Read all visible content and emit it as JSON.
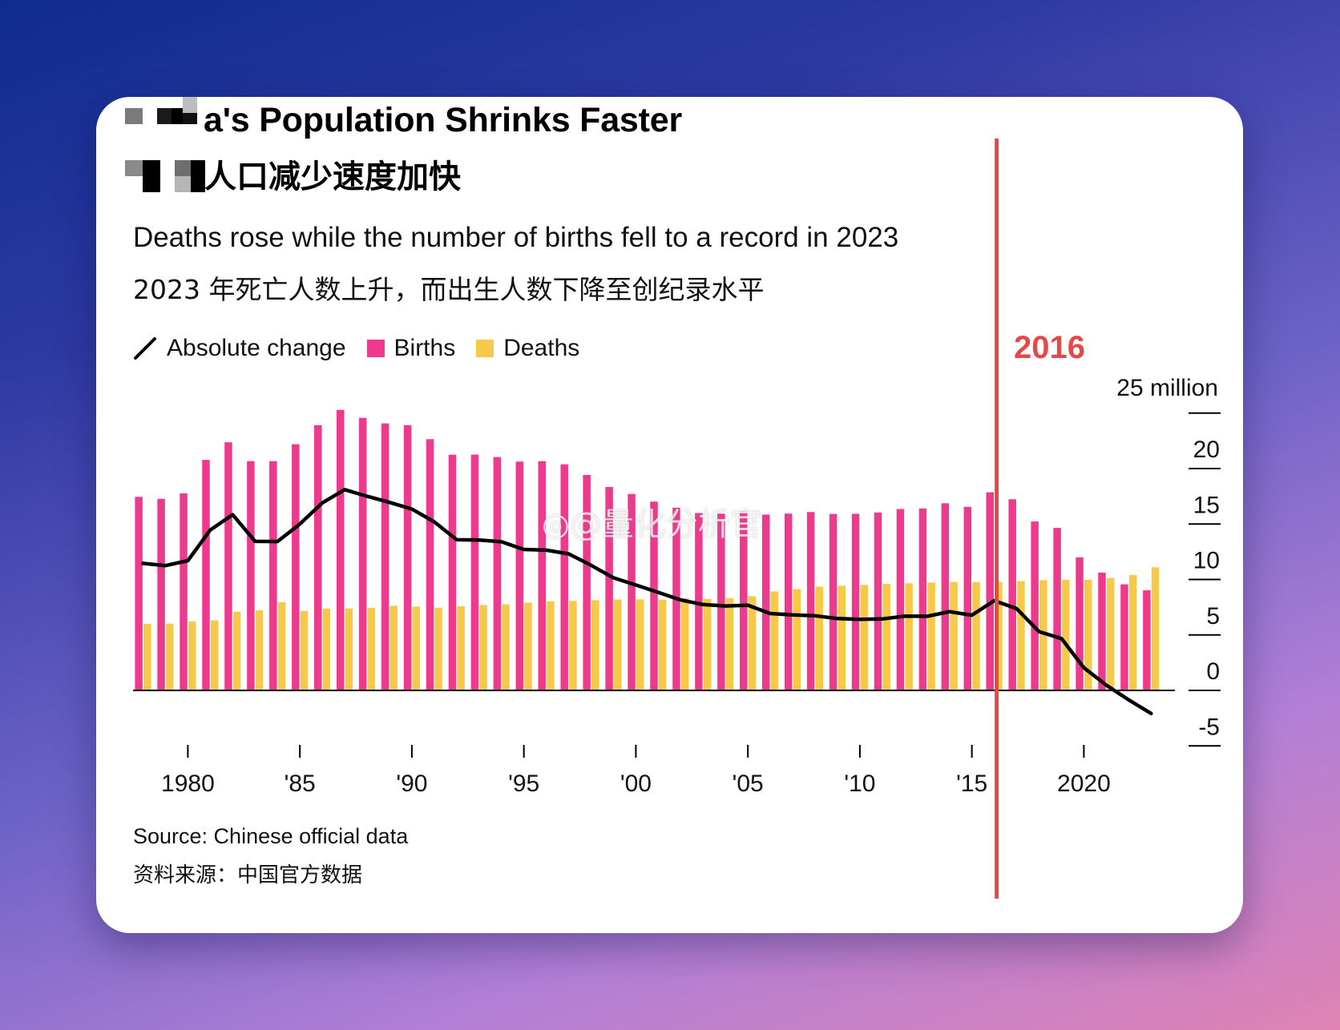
{
  "header": {
    "title": "a's Population Shrinks Faster",
    "title_zh": "人口减少速度加快",
    "subtitle": "Deaths rose while the number of births fell to a record in 2023",
    "subtitle_zh": "2023 年死亡人数上升，而出生人数下降至创纪录水平"
  },
  "legend": {
    "absolute_change": "Absolute change",
    "births": "Births",
    "deaths": "Deaths"
  },
  "annotation": {
    "year_label": "2016",
    "year": 2016
  },
  "footer": {
    "source": "Source: Chinese official data",
    "source_zh": "资料来源：中国官方数据"
  },
  "watermark": "@量化分析官",
  "colors": {
    "births": "#ee3a8c",
    "deaths": "#f7c948",
    "change": "#000000",
    "highlight": "#e24a4a",
    "axis": "#000000"
  },
  "chart_data": {
    "type": "bar",
    "title": "a's Population Shrinks Faster",
    "unit_label": "25 million",
    "xlabel": "",
    "ylabel": "",
    "ylim": [
      -5,
      25
    ],
    "yticks": [
      25,
      20,
      15,
      10,
      5,
      0,
      -5
    ],
    "ytick_labels": [
      "25 million",
      "20",
      "15",
      "10",
      "5",
      "0",
      "-5"
    ],
    "xticks": [
      1980,
      1985,
      1990,
      1995,
      2000,
      2005,
      2010,
      2015,
      2020
    ],
    "xtick_labels": [
      "1980",
      "'85",
      "'90",
      "'95",
      "'00",
      "'05",
      "'10",
      "'15",
      "2020"
    ],
    "years": [
      1978,
      1979,
      1980,
      1981,
      1982,
      1983,
      1984,
      1985,
      1986,
      1987,
      1988,
      1989,
      1990,
      1991,
      1992,
      1993,
      1994,
      1995,
      1996,
      1997,
      1998,
      1999,
      2000,
      2001,
      2002,
      2003,
      2004,
      2005,
      2006,
      2007,
      2008,
      2009,
      2010,
      2011,
      2012,
      2013,
      2014,
      2015,
      2016,
      2017,
      2018,
      2019,
      2020,
      2021,
      2022,
      2023
    ],
    "series": [
      {
        "name": "Births",
        "kind": "bar",
        "values": [
          17.45,
          17.27,
          17.76,
          20.78,
          22.37,
          20.67,
          20.67,
          22.19,
          23.91,
          25.29,
          24.57,
          24.07,
          23.91,
          22.65,
          21.25,
          21.26,
          21.04,
          20.63,
          20.67,
          20.38,
          19.42,
          18.34,
          17.71,
          17.02,
          16.47,
          15.99,
          15.93,
          16.17,
          15.85,
          15.94,
          16.08,
          15.91,
          15.92,
          16.04,
          16.35,
          16.4,
          16.87,
          16.55,
          17.86,
          17.23,
          15.23,
          14.65,
          12.0,
          10.62,
          9.56,
          9.02
        ]
      },
      {
        "name": "Deaths",
        "kind": "bar",
        "values": [
          6.0,
          6.02,
          6.22,
          6.32,
          7.09,
          7.22,
          7.95,
          7.16,
          7.38,
          7.39,
          7.45,
          7.63,
          7.55,
          7.46,
          7.59,
          7.7,
          7.76,
          7.92,
          8.03,
          8.07,
          8.14,
          8.19,
          8.21,
          8.18,
          8.32,
          8.25,
          8.32,
          8.49,
          8.92,
          9.13,
          9.35,
          9.43,
          9.51,
          9.6,
          9.66,
          9.72,
          9.77,
          9.77,
          9.77,
          9.86,
          9.93,
          9.98,
          9.98,
          10.14,
          10.41,
          11.1
        ]
      },
      {
        "name": "Absolute change",
        "kind": "line",
        "values": [
          11.45,
          11.25,
          11.7,
          14.46,
          15.84,
          13.44,
          13.42,
          15.0,
          16.9,
          18.1,
          17.5,
          16.95,
          16.35,
          15.2,
          13.58,
          13.56,
          13.4,
          12.71,
          12.64,
          12.31,
          11.28,
          10.15,
          9.5,
          8.84,
          8.15,
          7.74,
          7.61,
          7.68,
          6.93,
          6.81,
          6.73,
          6.48,
          6.41,
          6.44,
          6.69,
          6.68,
          7.1,
          6.78,
          8.09,
          7.37,
          5.3,
          4.67,
          2.04,
          0.48,
          -0.85,
          -2.08
        ]
      }
    ]
  }
}
